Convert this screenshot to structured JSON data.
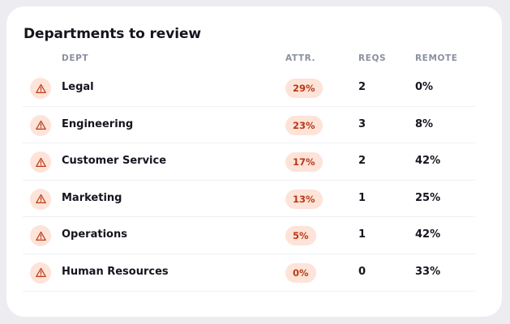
{
  "card": {
    "title": "Departments to review"
  },
  "columns": {
    "dept": "DEPT",
    "attr": "ATTR.",
    "reqs": "REQS",
    "remote": "REMOTE"
  },
  "rows": [
    {
      "icon": "warning-icon",
      "dept": "Legal",
      "attr": "29%",
      "reqs": "2",
      "remote": "0%"
    },
    {
      "icon": "warning-icon",
      "dept": "Engineering",
      "attr": "23%",
      "reqs": "3",
      "remote": "8%"
    },
    {
      "icon": "warning-icon",
      "dept": "Customer Service",
      "attr": "17%",
      "reqs": "2",
      "remote": "42%"
    },
    {
      "icon": "warning-icon",
      "dept": "Marketing",
      "attr": "13%",
      "reqs": "1",
      "remote": "25%"
    },
    {
      "icon": "warning-icon",
      "dept": "Operations",
      "attr": "5%",
      "reqs": "1",
      "remote": "42%"
    },
    {
      "icon": "warning-icon",
      "dept": "Human Resources",
      "attr": "0%",
      "reqs": "0",
      "remote": "33%"
    }
  ],
  "colors": {
    "page_background": "#ececf1",
    "card_background": "#ffffff",
    "warning_accent": "#b93a17",
    "warning_tint": "#fde3d8"
  }
}
